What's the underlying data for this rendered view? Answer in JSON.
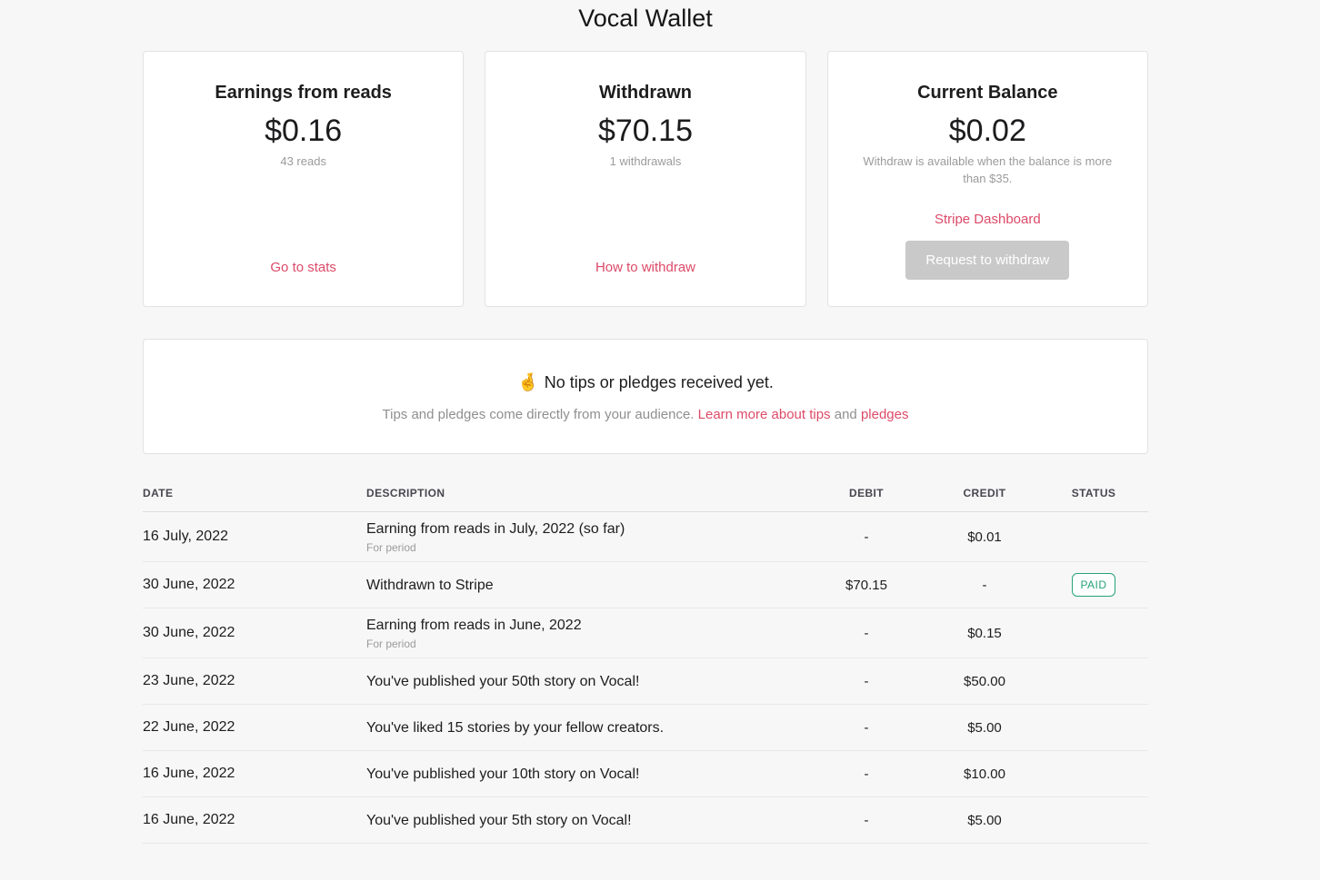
{
  "page": {
    "title": "Vocal Wallet"
  },
  "colors": {
    "accent_pink": "#dd4a68",
    "paid_green": "#26a17b",
    "disabled_button_gray": "#c9c9c9",
    "page_background": "#f7f7f7",
    "muted_text": "#9b9b9b"
  },
  "cards": [
    {
      "heading": "Earnings from reads",
      "amount": "$0.16",
      "subtext": "43 reads",
      "link": "Go to stats"
    },
    {
      "heading": "Withdrawn",
      "amount": "$70.15",
      "subtext": "1 withdrawals",
      "link": "How to withdraw"
    },
    {
      "heading": "Current Balance",
      "amount": "$0.02",
      "note": "Withdraw is available when the balance is more than $35.",
      "link": "Stripe Dashboard",
      "button": "Request to withdraw"
    }
  ],
  "tips": {
    "emoji": "🤞",
    "heading": "No tips or pledges received yet.",
    "body_prefix": "Tips and pledges come directly from your audience. ",
    "link_tips": "Learn more about tips",
    "body_middle": " and ",
    "link_pledges": "pledges"
  },
  "table": {
    "headers": [
      "Date",
      "Description",
      "Debit",
      "Credit",
      "Status"
    ],
    "rows": [
      {
        "date": "16 July, 2022",
        "description": "Earning from reads in July, 2022 (so far)",
        "sub": "For period",
        "debit": "-",
        "credit": "$0.01",
        "status": ""
      },
      {
        "date": "30 June, 2022",
        "description": "Withdrawn to Stripe",
        "sub": "",
        "debit": "$70.15",
        "credit": "-",
        "status": "PAID"
      },
      {
        "date": "30 June, 2022",
        "description": "Earning from reads in June, 2022",
        "sub": "For period",
        "debit": "-",
        "credit": "$0.15",
        "status": ""
      },
      {
        "date": "23 June, 2022",
        "description": "You've published your 50th story on Vocal!",
        "sub": "",
        "debit": "-",
        "credit": "$50.00",
        "status": ""
      },
      {
        "date": "22 June, 2022",
        "description": "You've liked 15 stories by your fellow creators.",
        "sub": "",
        "debit": "-",
        "credit": "$5.00",
        "status": ""
      },
      {
        "date": "16 June, 2022",
        "description": "You've published your 10th story on Vocal!",
        "sub": "",
        "debit": "-",
        "credit": "$10.00",
        "status": ""
      },
      {
        "date": "16 June, 2022",
        "description": "You've published your 5th story on Vocal!",
        "sub": "",
        "debit": "-",
        "credit": "$5.00",
        "status": ""
      }
    ]
  }
}
